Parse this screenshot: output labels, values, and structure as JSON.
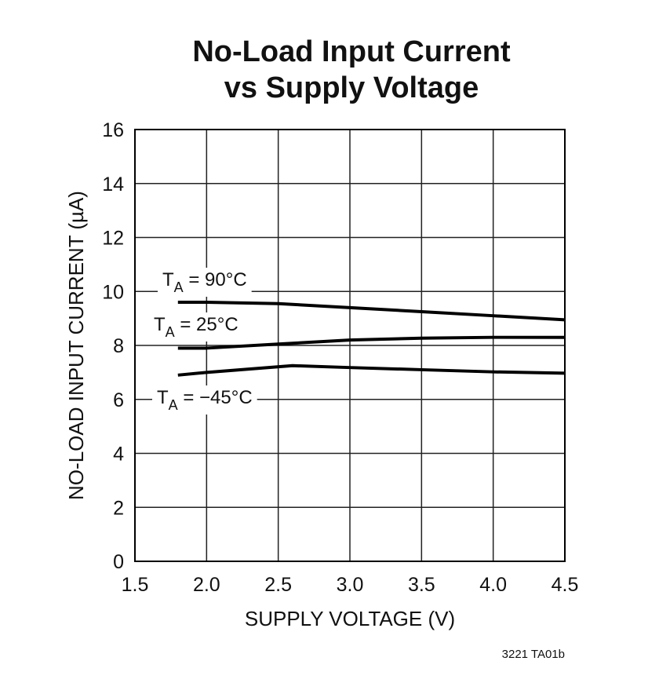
{
  "chart_data": {
    "type": "line",
    "title": [
      "No-Load Input Current",
      "vs Supply Voltage"
    ],
    "xlabel": "SUPPLY VOLTAGE (V)",
    "ylabel": "NO-LOAD INPUT CURRENT (µA)",
    "note": "3221 TA01b",
    "xlim": [
      1.5,
      4.5
    ],
    "xticks": [
      1.5,
      {
        "value": 2,
        "label": "2.0"
      },
      2.5,
      {
        "value": 3,
        "label": "3.0"
      },
      3.5,
      {
        "value": 4,
        "label": "4.0"
      },
      4.5
    ],
    "ylim": [
      0,
      16
    ],
    "yticks": [
      0,
      2,
      4,
      6,
      8,
      10,
      12,
      14,
      16
    ],
    "grid": true,
    "series": [
      {
        "name": "TA = 90°C",
        "color": "#000000",
        "x": [
          1.8,
          2.0,
          2.5,
          3.0,
          3.5,
          4.0,
          4.5
        ],
        "values": [
          9.6,
          9.6,
          9.55,
          9.4,
          9.25,
          9.1,
          8.95
        ]
      },
      {
        "name": "TA = 25°C",
        "color": "#000000",
        "x": [
          1.8,
          2.0,
          2.5,
          3.0,
          3.5,
          4.0,
          4.5
        ],
        "values": [
          7.9,
          7.9,
          8.05,
          8.2,
          8.27,
          8.3,
          8.3
        ]
      },
      {
        "name": "TA = −45°C",
        "color": "#000000",
        "x": [
          1.8,
          2.0,
          2.6,
          3.0,
          3.5,
          4.0,
          4.5
        ],
        "values": [
          6.9,
          7.0,
          7.25,
          7.18,
          7.1,
          7.02,
          6.97
        ]
      }
    ]
  }
}
